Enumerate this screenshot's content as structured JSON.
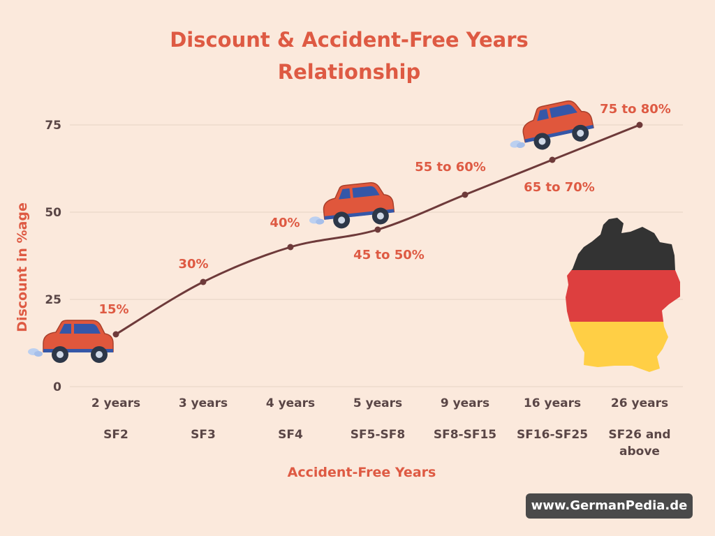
{
  "chart_data": {
    "type": "line",
    "title": "Discount & Accident-Free Years Relationship",
    "xlabel": "Accident-Free Years",
    "ylabel": "Discount in %age",
    "ylim": [
      0,
      75
    ],
    "yticks": [
      0,
      25,
      50,
      75
    ],
    "grid": true,
    "categories": [
      "2 years",
      "3 years",
      "4 years",
      "5 years",
      "9 years",
      "16 years",
      "26 years"
    ],
    "classes": [
      [
        "SF2"
      ],
      [
        "SF3"
      ],
      [
        "SF4"
      ],
      [
        "SF5-SF8"
      ],
      [
        "SF8-SF15"
      ],
      [
        "SF16-SF25"
      ],
      [
        "SF26 and",
        "above"
      ]
    ],
    "series": [
      {
        "values": [
          15,
          30,
          40,
          45,
          55,
          65,
          75
        ],
        "labels": [
          "15%",
          "30%",
          "40%",
          "45 to 50%",
          "55 to 60%",
          "65 to 70%",
          "75 to 80%"
        ]
      }
    ]
  },
  "watermark": "www.GermanPedia.de",
  "colors": {
    "background": "#fbe9dc",
    "accent": "#de5a43",
    "line": "#6e3a3a",
    "axis_text": "#5a4646",
    "grid": "#e6d2c4",
    "car_body": "#e0573c",
    "car_window": "#3557a8",
    "flag_black": "#333333",
    "flag_red": "#dd3f3f",
    "flag_gold": "#ffcf45"
  }
}
